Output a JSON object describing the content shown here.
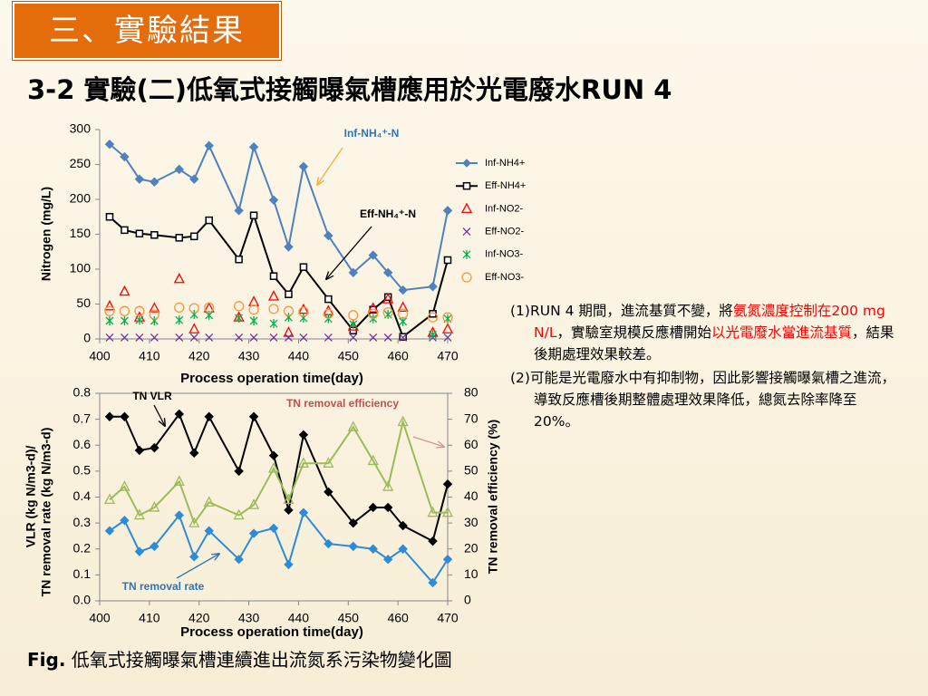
{
  "header": {
    "section": "三、實驗結果",
    "title": "3-2 實驗(二)低氧式接觸曝氣槽應用於光電廢水RUN 4"
  },
  "chart_data": [
    {
      "type": "line",
      "x_label": "Process operation time(day)",
      "y_label": [
        "Nitrogen (mg/L)"
      ],
      "x": [
        402,
        405,
        408,
        411,
        416,
        419,
        422,
        428,
        431,
        435,
        438,
        441,
        446,
        451,
        455,
        458,
        461,
        467,
        470
      ],
      "xlim": [
        400,
        470
      ],
      "xticks": [
        400,
        410,
        420,
        430,
        440,
        450,
        460,
        470
      ],
      "ylim": [
        0,
        300
      ],
      "yticks": [
        0,
        50,
        100,
        150,
        200,
        250,
        300
      ],
      "legend": "right",
      "series": [
        {
          "name": "Inf-NH4+",
          "color": "#4f81bd",
          "marker": "diamond",
          "line": true,
          "values": [
            279,
            261,
            229,
            225,
            243,
            229,
            277,
            184,
            275,
            199,
            132,
            247,
            148,
            95,
            120,
            95,
            70,
            75,
            184
          ]
        },
        {
          "name": "Eff-NH4+",
          "color": "#000000",
          "marker": "square",
          "line": true,
          "values": [
            175,
            156,
            151,
            149,
            145,
            147,
            170,
            114,
            177,
            90,
            64,
            103,
            57,
            12,
            42,
            60,
            3,
            36,
            113
          ]
        },
        {
          "name": "Inf-NO2-",
          "color": "#ff0000",
          "marker": "triangle",
          "line": false,
          "values": [
            47,
            68,
            31,
            44,
            86,
            14,
            44,
            31,
            53,
            61,
            9,
            42,
            40,
            18,
            44,
            57,
            45,
            9,
            14
          ]
        },
        {
          "name": "Eff-NO2-",
          "color": "#7030a0",
          "marker": "cross",
          "line": false,
          "values": [
            2,
            2,
            2,
            2,
            2,
            2,
            2,
            2,
            2,
            2,
            2,
            2,
            2,
            2,
            2,
            2,
            2,
            2,
            2
          ]
        },
        {
          "name": "Inf-NO3-",
          "color": "#00b050",
          "marker": "star",
          "line": false,
          "values": [
            26,
            26,
            27,
            26,
            27,
            35,
            34,
            30,
            26,
            22,
            31,
            30,
            29,
            21,
            29,
            35,
            25,
            6,
            29
          ]
        },
        {
          "name": "Eff-NO3-",
          "color": "#f79646",
          "marker": "circle",
          "line": false,
          "values": [
            40,
            40,
            40,
            35,
            45,
            44,
            45,
            47,
            42,
            43,
            40,
            39,
            36,
            34,
            36,
            38,
            36,
            31,
            31
          ]
        }
      ],
      "annotations": [
        {
          "text": "Inf-NH₄⁺-N",
          "color": "#2e75b6"
        },
        {
          "text": "Eff-NH₄⁺-N",
          "color": "#000000"
        }
      ]
    },
    {
      "type": "line",
      "x_label": "Process operation time(day)",
      "y_label": [
        "VLR (kg N/m3-d)/",
        "TN removal rate (kg N/m3-d)"
      ],
      "y2_label": "TN  removal efficiency (%)",
      "x": [
        402,
        405,
        408,
        411,
        416,
        419,
        422,
        428,
        431,
        435,
        438,
        441,
        446,
        451,
        455,
        458,
        461,
        467,
        470
      ],
      "xlim": [
        400,
        470
      ],
      "xticks": [
        400,
        410,
        420,
        430,
        440,
        450,
        460,
        470
      ],
      "ylim": [
        0,
        0.8
      ],
      "yticks": [
        {
          "value": 0,
          "label": "0.0"
        },
        0.1,
        0.2,
        0.3,
        0.4,
        0.5,
        0.6,
        0.7,
        0.8
      ],
      "y2lim": [
        0,
        80
      ],
      "y2ticks": [
        0,
        10,
        20,
        30,
        40,
        50,
        60,
        70,
        80
      ],
      "series": [
        {
          "color": "#000000",
          "marker": "diamond",
          "line": true,
          "values": [
            0.71,
            0.71,
            0.58,
            0.59,
            0.72,
            0.57,
            0.71,
            0.5,
            0.71,
            0.56,
            0.35,
            0.64,
            0.42,
            0.3,
            0.36,
            0.36,
            0.29,
            0.23,
            0.45
          ]
        },
        {
          "color": "#2e8bd8",
          "marker": "diamond",
          "line": true,
          "values": [
            0.27,
            0.31,
            0.19,
            0.21,
            0.33,
            0.17,
            0.27,
            0.16,
            0.26,
            0.28,
            0.14,
            0.34,
            0.22,
            0.21,
            0.2,
            0.16,
            0.2,
            0.07,
            0.16
          ]
        },
        {
          "color": "#9bbb59",
          "marker": "triangle",
          "line": true,
          "axis": "y2",
          "values": [
            39,
            44,
            33,
            36,
            46,
            30,
            38,
            33,
            37,
            51,
            39,
            53,
            53,
            67,
            54,
            44,
            69,
            34,
            34
          ]
        }
      ],
      "annotations": [
        {
          "text": "TN VLR",
          "color": "#000000"
        },
        {
          "text": "TN removal efficiency",
          "color": "#c0504d"
        },
        {
          "text": "TN removal rate",
          "color": "#2e75b6"
        }
      ]
    }
  ],
  "notes": [
    [
      {
        "text": "(1)RUN 4 期間，進流基質不變，將",
        "color": "#000000"
      },
      {
        "text": "氨氮濃度控制在200 mg N/L",
        "color": "#ff0000"
      },
      {
        "text": "，實驗室規模反應槽開始",
        "color": "#000000"
      },
      {
        "text": "以光電廢水當進流基質",
        "color": "#ff0000"
      },
      {
        "text": "，結果後期處理效果較差。",
        "color": "#000000"
      }
    ],
    [
      {
        "text": "(2)可能是光電廢水中有抑制物，因此影響接觸曝氣槽之進流，導致反應槽後期整體處理效果降低，總氮去除率降至20%。",
        "color": "#000000"
      }
    ]
  ],
  "caption": {
    "label": "Fig.",
    "text": " 低氧式接觸曝氣槽連續進出流氮系污染物變化圖"
  }
}
